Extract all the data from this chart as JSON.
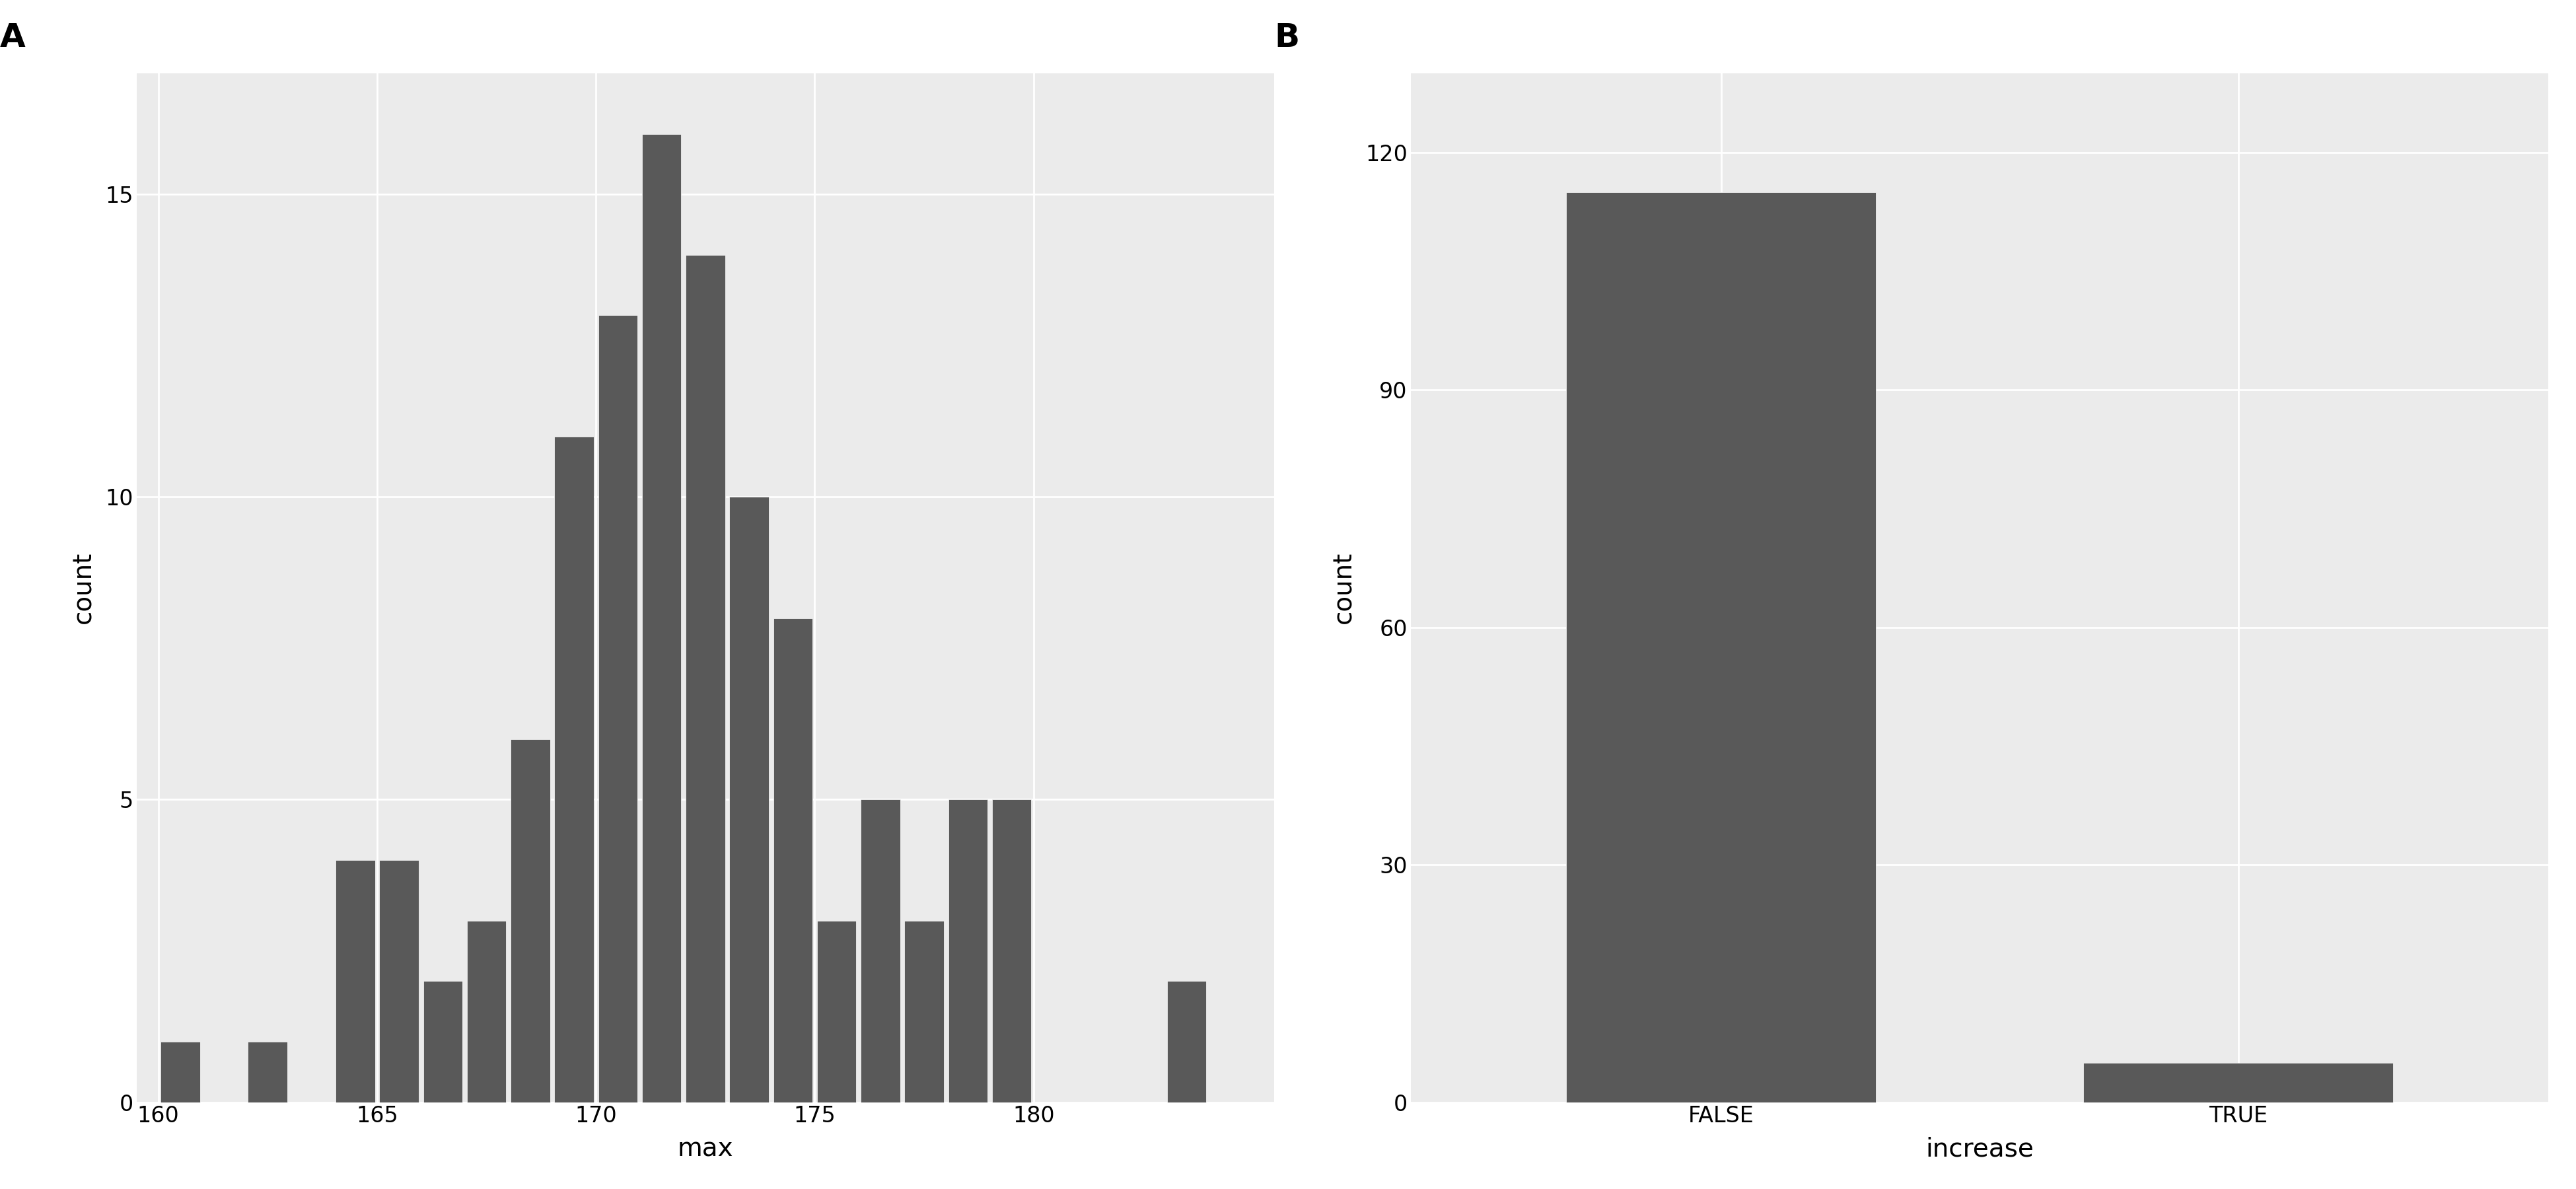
{
  "hist_bin_edges": [
    160,
    161,
    162,
    163,
    164,
    165,
    166,
    167,
    168,
    169,
    170,
    171,
    172,
    173,
    174,
    175,
    176,
    177,
    178,
    179,
    180,
    181,
    182,
    183,
    184,
    185
  ],
  "hist_counts": [
    1,
    0,
    1,
    0,
    4,
    4,
    2,
    3,
    6,
    11,
    13,
    16,
    14,
    10,
    8,
    3,
    5,
    3,
    5,
    5,
    0,
    0,
    0,
    2,
    0,
    0
  ],
  "bar_categories": [
    "FALSE",
    "TRUE"
  ],
  "bar_values": [
    115,
    5
  ],
  "bar_color": "#595959",
  "hist_color": "#595959",
  "background_color": "#EBEBEB",
  "grid_color": "#FFFFFF",
  "xlabel_A": "max",
  "ylabel_A": "count",
  "xlabel_B": "increase",
  "ylabel_B": "count",
  "label_A": "A",
  "label_B": "B",
  "yticks_A": [
    0,
    5,
    10,
    15
  ],
  "yticks_B": [
    0,
    30,
    60,
    90,
    120
  ],
  "xticks_A": [
    160,
    165,
    170,
    175,
    180
  ],
  "font_size_label": 28,
  "font_size_axis": 26,
  "font_size_panel": 36,
  "tick_font_size": 24
}
